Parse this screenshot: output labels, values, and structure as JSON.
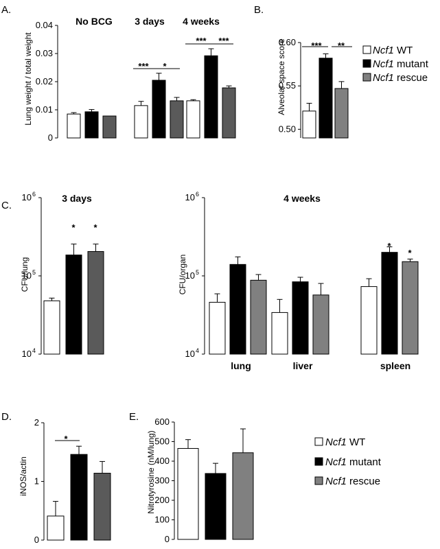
{
  "colors": {
    "wt": "#ffffff",
    "mutant": "#000000",
    "rescue": "#808080",
    "rescue_dark": "#5a5a5a",
    "stroke": "#000000"
  },
  "legend": {
    "gene": "Ncf1",
    "entries": [
      {
        "key": "wt",
        "suffix": " WT"
      },
      {
        "key": "mutant",
        "suffix": " mutant"
      },
      {
        "key": "rescue",
        "suffix": " rescue"
      }
    ]
  },
  "chart_data": [
    {
      "panel": "A.",
      "type": "bar",
      "ylabel": "Lung weight / total weight",
      "ylim": [
        0,
        0.04
      ],
      "yticks": [
        "0",
        "0.01",
        "0.02",
        "0.03",
        "0.04"
      ],
      "groups": [
        "No BCG",
        "3 days",
        "4 weeks"
      ],
      "series": [
        {
          "key": "wt",
          "values": [
            0.0085,
            0.0115,
            0.0132
          ],
          "errors": [
            0.0005,
            0.0015,
            0.0004
          ]
        },
        {
          "key": "mutant",
          "values": [
            0.0093,
            0.0205,
            0.0292
          ],
          "errors": [
            0.0008,
            0.0025,
            0.0025
          ]
        },
        {
          "key": "rescue",
          "values": [
            0.0078,
            0.0132,
            0.0178
          ],
          "errors": [
            0.0,
            0.0012,
            0.0007
          ]
        }
      ],
      "significance": [
        "***",
        "*",
        "***",
        "***"
      ]
    },
    {
      "panel": "B.",
      "type": "bar",
      "ylabel": "Alveolar space score",
      "ylim": [
        0.49,
        0.6
      ],
      "yticks": [
        "0.50",
        "0.55",
        "0.60"
      ],
      "series": [
        {
          "key": "wt",
          "values": [
            0.521
          ],
          "errors": [
            0.009
          ]
        },
        {
          "key": "mutant",
          "values": [
            0.582
          ],
          "errors": [
            0.005
          ]
        },
        {
          "key": "rescue",
          "values": [
            0.547
          ],
          "errors": [
            0.008
          ]
        }
      ],
      "significance": [
        "***",
        "**"
      ]
    },
    {
      "panel": "C.",
      "type": "bar",
      "ylabel": "CFU/lung",
      "title": "3 days",
      "yscale": "log",
      "ylim": [
        10000,
        1000000
      ],
      "yticks": [
        "10",
        "10",
        "10"
      ],
      "ytick_exponents": [
        "4",
        "5",
        "6"
      ],
      "series": [
        {
          "key": "wt",
          "values": [
            48000
          ],
          "errors": [
            4000
          ]
        },
        {
          "key": "mutant",
          "values": [
            185000
          ],
          "errors": [
            70000
          ]
        },
        {
          "key": "rescue",
          "values": [
            205000
          ],
          "errors": [
            50000
          ]
        }
      ],
      "significance": [
        "*",
        "*"
      ]
    },
    {
      "type": "bar",
      "ylabel": "CFU/organ",
      "title": "4 weeks",
      "yscale": "log",
      "ylim": [
        10000,
        1000000
      ],
      "yticks": [
        "10",
        "10",
        "10"
      ],
      "ytick_exponents": [
        "4",
        "5",
        "6"
      ],
      "categories": [
        "lung",
        "liver",
        "spleen"
      ],
      "series": [
        {
          "key": "wt",
          "values": [
            46000,
            34000,
            73000
          ],
          "errors": [
            13000,
            16000,
            19000
          ]
        },
        {
          "key": "mutant",
          "values": [
            140000,
            84000,
            200000
          ],
          "errors": [
            35000,
            12000,
            35000
          ]
        },
        {
          "key": "rescue",
          "values": [
            88000,
            57000,
            152000
          ],
          "errors": [
            16000,
            23000,
            12000
          ]
        }
      ],
      "significance": [
        "*",
        "*"
      ]
    },
    {
      "panel": "D.",
      "type": "bar",
      "ylabel": "iNOS/actin",
      "ylim": [
        0,
        2
      ],
      "yticks": [
        "0",
        "1",
        "2"
      ],
      "series": [
        {
          "key": "wt",
          "values": [
            0.41
          ],
          "errors": [
            0.25
          ]
        },
        {
          "key": "mutant",
          "values": [
            1.46
          ],
          "errors": [
            0.14
          ]
        },
        {
          "key": "rescue",
          "values": [
            1.14
          ],
          "errors": [
            0.2
          ]
        }
      ],
      "significance": [
        "*"
      ]
    },
    {
      "panel": "E.",
      "type": "bar",
      "ylabel": "Nitrotyrosine (nM/lung)",
      "ylim": [
        0,
        600
      ],
      "yticks": [
        "0",
        "100",
        "200",
        "300",
        "400",
        "500",
        "600"
      ],
      "series": [
        {
          "key": "wt",
          "values": [
            465
          ],
          "errors": [
            45
          ]
        },
        {
          "key": "mutant",
          "values": [
            337
          ],
          "errors": [
            52
          ]
        },
        {
          "key": "rescue",
          "values": [
            443
          ],
          "errors": [
            122
          ]
        }
      ]
    }
  ]
}
